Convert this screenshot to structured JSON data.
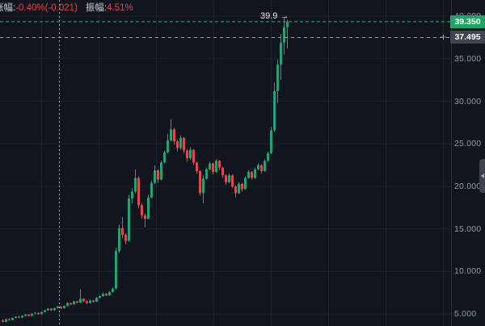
{
  "overlay": {
    "change_label": "涨幅:",
    "change_value": "-0.40%(-0.021)",
    "amplitude_label": "振幅:",
    "amplitude_value": "4.51%"
  },
  "annotation": {
    "text": "39.9",
    "arrow": "→"
  },
  "price_axis": {
    "ticks": [
      "40.000",
      "35.000",
      "30.000",
      "25.000",
      "20.000",
      "15.000",
      "10.000",
      "5.000"
    ],
    "tick_values": [
      40,
      35,
      30,
      25,
      20,
      15,
      10,
      5
    ],
    "current_price_badge": {
      "label": "39.350",
      "value": 39.35,
      "color": "#1fa566"
    },
    "order_badge": {
      "label": "37.495",
      "value": 37.495,
      "color": "#40454f"
    },
    "plus_button": "+"
  },
  "colors": {
    "background": "#11151d",
    "up": "#26a176",
    "down": "#e0484e",
    "grid": "rgba(255,255,255,0.055)",
    "current_line": "#2eac7e",
    "order_line": "#9aa0aa",
    "session_marker": "#cfd3da",
    "axis_text": "#9298a2"
  },
  "chart_data": {
    "type": "candlestick",
    "ylim": [
      3.6,
      41.9
    ],
    "grid": true,
    "legend": "none",
    "yticks": [
      40,
      35,
      30,
      25,
      20,
      15,
      10,
      5
    ],
    "current_price_line": {
      "value": 39.35,
      "style": "dashed"
    },
    "order_line": {
      "value": 37.495,
      "style": "dashed"
    },
    "session_marker_x": 73,
    "peak_annotation_value": 39.9,
    "candles": [
      [
        4.25,
        4.4,
        4.0,
        4.1
      ],
      [
        4.1,
        4.45,
        4.05,
        4.4
      ],
      [
        4.4,
        4.5,
        4.2,
        4.3
      ],
      [
        4.3,
        4.6,
        4.25,
        4.55
      ],
      [
        4.55,
        4.75,
        4.5,
        4.7
      ],
      [
        4.7,
        4.8,
        4.5,
        4.6
      ],
      [
        4.6,
        4.85,
        4.55,
        4.8
      ],
      [
        4.8,
        5.0,
        4.75,
        4.95
      ],
      [
        4.95,
        5.0,
        4.7,
        4.8
      ],
      [
        4.8,
        5.1,
        4.75,
        5.05
      ],
      [
        5.05,
        5.2,
        5.0,
        5.15
      ],
      [
        5.15,
        5.2,
        4.9,
        5.0
      ],
      [
        5.0,
        5.3,
        4.95,
        5.25
      ],
      [
        5.25,
        5.5,
        5.2,
        5.45
      ],
      [
        5.45,
        5.7,
        5.4,
        5.65
      ],
      [
        5.65,
        5.7,
        5.35,
        5.45
      ],
      [
        5.45,
        5.75,
        5.4,
        5.7
      ],
      [
        5.7,
        5.95,
        5.65,
        5.9
      ],
      [
        5.9,
        5.95,
        5.6,
        5.7
      ],
      [
        5.7,
        6.0,
        5.65,
        5.95
      ],
      [
        5.95,
        6.4,
        5.9,
        6.3
      ],
      [
        6.3,
        6.35,
        6.05,
        6.15
      ],
      [
        6.15,
        6.55,
        6.1,
        6.5
      ],
      [
        6.5,
        6.55,
        6.25,
        6.35
      ],
      [
        6.35,
        7.9,
        6.3,
        6.8
      ],
      [
        6.8,
        6.85,
        6.4,
        6.5
      ],
      [
        6.5,
        6.6,
        6.2,
        6.3
      ],
      [
        6.3,
        6.7,
        6.25,
        6.6
      ],
      [
        6.6,
        6.65,
        6.35,
        6.45
      ],
      [
        6.45,
        7.0,
        6.4,
        6.9
      ],
      [
        6.9,
        7.2,
        6.85,
        7.1
      ],
      [
        7.1,
        7.5,
        7.05,
        7.4
      ],
      [
        7.4,
        7.45,
        7.1,
        7.2
      ],
      [
        7.2,
        7.7,
        7.15,
        7.6
      ],
      [
        7.6,
        8.1,
        7.55,
        8.0
      ],
      [
        8.0,
        12.8,
        7.9,
        12.4
      ],
      [
        12.4,
        15.5,
        12.2,
        15.1
      ],
      [
        15.1,
        16.4,
        13.9,
        14.3
      ],
      [
        14.3,
        14.5,
        13.2,
        13.6
      ],
      [
        13.6,
        19.0,
        13.5,
        18.6
      ],
      [
        18.6,
        19.8,
        18.0,
        19.4
      ],
      [
        19.4,
        22.0,
        19.2,
        21.0
      ],
      [
        21.0,
        21.2,
        17.4,
        17.8
      ],
      [
        17.8,
        18.0,
        16.2,
        16.6
      ],
      [
        16.6,
        16.8,
        15.2,
        16.2
      ],
      [
        16.2,
        19.0,
        16.1,
        18.7
      ],
      [
        18.7,
        20.7,
        18.6,
        20.4
      ],
      [
        20.4,
        22.5,
        20.3,
        21.9
      ],
      [
        21.9,
        22.0,
        20.4,
        20.8
      ],
      [
        20.8,
        23.0,
        20.7,
        22.8
      ],
      [
        22.8,
        24.2,
        22.7,
        24.0
      ],
      [
        24.0,
        26.2,
        23.9,
        25.4
      ],
      [
        25.4,
        27.9,
        25.3,
        26.7
      ],
      [
        26.7,
        26.9,
        24.9,
        25.3
      ],
      [
        25.3,
        25.5,
        24.1,
        24.5
      ],
      [
        24.5,
        26.0,
        24.3,
        25.7
      ],
      [
        25.7,
        25.8,
        23.9,
        24.2
      ],
      [
        24.2,
        24.4,
        22.9,
        23.3
      ],
      [
        23.3,
        24.6,
        23.1,
        24.3
      ],
      [
        24.3,
        24.4,
        22.5,
        22.8
      ],
      [
        22.8,
        22.9,
        21.5,
        21.8
      ],
      [
        21.8,
        21.9,
        18.9,
        19.2
      ],
      [
        19.2,
        21.3,
        18.0,
        20.9
      ],
      [
        20.9,
        22.2,
        20.8,
        22.0
      ],
      [
        22.0,
        22.9,
        21.9,
        22.7
      ],
      [
        22.7,
        22.8,
        21.4,
        21.7
      ],
      [
        21.7,
        23.2,
        21.6,
        23.0
      ],
      [
        23.0,
        23.1,
        21.9,
        22.2
      ],
      [
        22.2,
        22.3,
        21.0,
        21.3
      ],
      [
        21.3,
        21.4,
        20.2,
        20.5
      ],
      [
        20.5,
        21.5,
        20.4,
        21.3
      ],
      [
        21.3,
        21.4,
        19.8,
        20.0
      ],
      [
        20.0,
        20.1,
        18.7,
        19.2
      ],
      [
        19.2,
        20.5,
        19.1,
        20.3
      ],
      [
        20.3,
        20.4,
        19.4,
        19.7
      ],
      [
        19.7,
        21.2,
        19.6,
        21.0
      ],
      [
        21.0,
        21.9,
        20.9,
        21.7
      ],
      [
        21.7,
        21.8,
        20.8,
        21.0
      ],
      [
        21.0,
        22.2,
        20.9,
        22.0
      ],
      [
        22.0,
        22.7,
        21.9,
        22.5
      ],
      [
        22.5,
        22.6,
        21.5,
        21.8
      ],
      [
        21.8,
        23.2,
        21.7,
        23.0
      ],
      [
        23.0,
        24.1,
        22.9,
        23.9
      ],
      [
        23.9,
        27.0,
        23.8,
        26.6
      ],
      [
        26.6,
        32.2,
        26.4,
        31.2
      ],
      [
        31.2,
        34.9,
        29.8,
        34.3
      ],
      [
        34.3,
        37.9,
        32.5,
        36.9
      ],
      [
        36.9,
        39.9,
        35.5,
        38.7
      ],
      [
        38.7,
        39.6,
        36.2,
        39.35
      ]
    ]
  }
}
